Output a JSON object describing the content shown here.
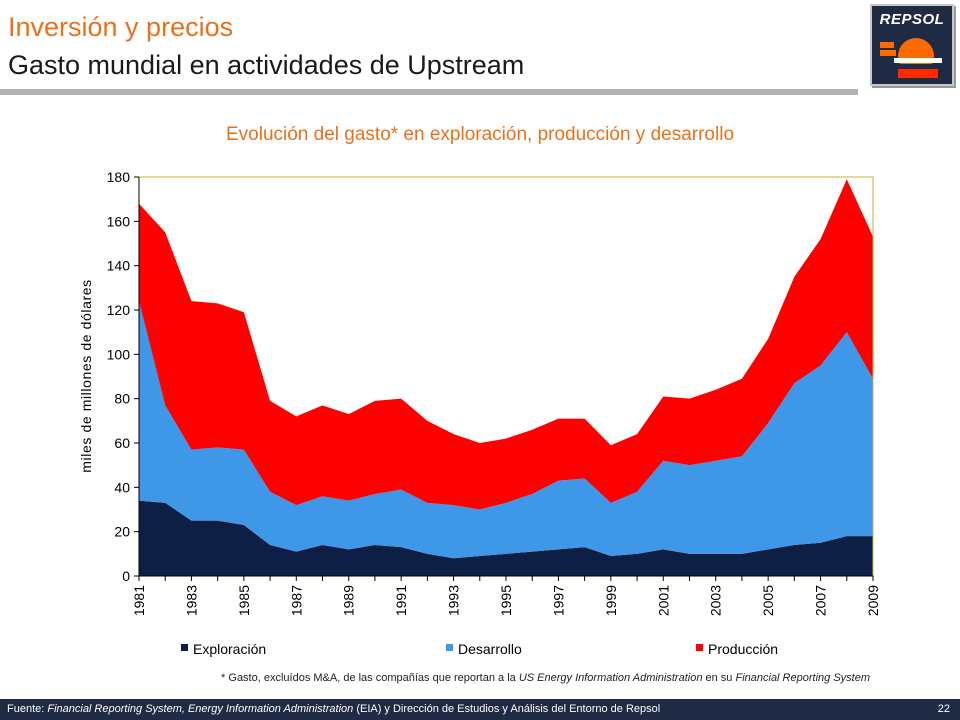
{
  "header": {
    "title_line1": "Inversión y precios",
    "title_line2": "Gasto mundial en actividades de Upstream",
    "logo_text": "REPSOL"
  },
  "chart_data": {
    "type": "area",
    "stacked": true,
    "title": "Evolución del gasto* en exploración, producción y desarrollo",
    "ylabel": "miles de millones de dólares",
    "xlabel": "",
    "ylim": [
      0,
      180
    ],
    "yticks": [
      "0",
      "20",
      "40",
      "60",
      "80",
      "100",
      "120",
      "140",
      "160",
      "180"
    ],
    "x": [
      1981,
      1982,
      1983,
      1984,
      1985,
      1986,
      1987,
      1988,
      1989,
      1990,
      1991,
      1992,
      1993,
      1994,
      1995,
      1996,
      1997,
      1998,
      1999,
      2000,
      2001,
      2002,
      2003,
      2004,
      2005,
      2006,
      2007,
      2008,
      2009
    ],
    "xtick_labels": [
      "1981",
      "1983",
      "1985",
      "1987",
      "1989",
      "1991",
      "1993",
      "1995",
      "1997",
      "1999",
      "2001",
      "2003",
      "2005",
      "2007",
      "2009"
    ],
    "series": [
      {
        "name": "Exploración",
        "color": "#0d1f44",
        "values": [
          34,
          33,
          25,
          25,
          23,
          14,
          11,
          14,
          12,
          14,
          13,
          10,
          8,
          9,
          10,
          11,
          12,
          13,
          9,
          10,
          12,
          10,
          10,
          10,
          12,
          14,
          15,
          18,
          18
        ]
      },
      {
        "name": "Desarrollo",
        "color": "#3f97e8",
        "values": [
          90,
          44,
          32,
          33,
          34,
          24,
          21,
          22,
          22,
          23,
          26,
          23,
          24,
          21,
          23,
          26,
          31,
          31,
          24,
          28,
          40,
          40,
          42,
          44,
          57,
          73,
          80,
          92,
          71
        ]
      },
      {
        "name": "Producción",
        "color": "#ff0000",
        "values": [
          44,
          78,
          67,
          65,
          62,
          41,
          40,
          41,
          39,
          42,
          41,
          37,
          32,
          30,
          29,
          29,
          28,
          27,
          26,
          26,
          29,
          30,
          32,
          35,
          38,
          48,
          57,
          69,
          64
        ]
      }
    ],
    "grid": false,
    "legend": "bottom"
  },
  "footnote": {
    "p1": "* Gasto, excluídos M&A, de las compañías que reportan a la ",
    "p2": "US Energy Information Administration",
    "p3": " en su ",
    "p4": "Financial Reporting System"
  },
  "footer": {
    "f1": "Fuente: ",
    "f2": "Financial Reporting System, Energy Information Administration",
    "f3": " (EIA) y Dirección de Estudios y Análisis del Entorno de Repsol",
    "page_number": "22"
  },
  "colors": {
    "title_orange": "#e8721c",
    "navy": "#1f2a44",
    "plot_border": "#c9b03a"
  }
}
